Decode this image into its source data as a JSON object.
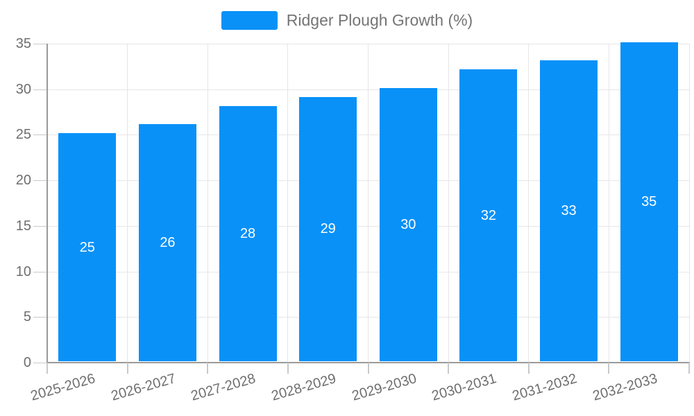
{
  "chart_data": {
    "type": "bar",
    "title": "Ridger Plough Growth (%)",
    "legend": {
      "label": "Ridger Plough Growth (%)",
      "position": "top-center"
    },
    "categories": [
      "2025-2026",
      "2026-2027",
      "2027-2028",
      "2028-2029",
      "2029-2030",
      "2030-2031",
      "2031-2032",
      "2032-2033"
    ],
    "values": [
      25,
      26,
      28,
      29,
      30,
      32,
      33,
      35
    ],
    "value_labels_shown_inside_bars": true,
    "xlabel": "",
    "ylabel": "",
    "ylim": [
      0,
      35
    ],
    "yticks": [
      0,
      5,
      10,
      15,
      20,
      25,
      30,
      35
    ],
    "grid": true,
    "x_label_rotation_deg": -16,
    "colors": {
      "bar": "#0991f8",
      "gridline": "#e6e6e6",
      "axis_line": "#9a9a9a",
      "tick": "#c9c9c9",
      "axis_label_text": "#6e6e6e",
      "legend_text": "#757575",
      "value_label_text": "#ffffff",
      "background": "#ffffff"
    }
  }
}
